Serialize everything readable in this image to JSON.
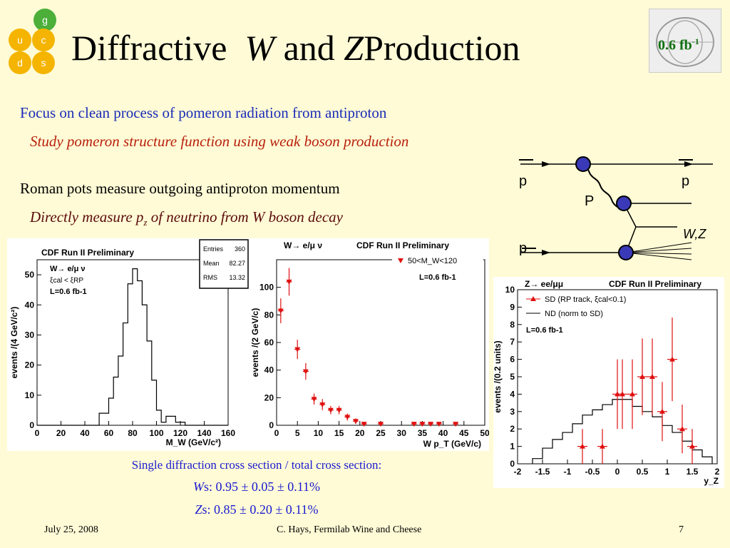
{
  "title": {
    "part1": "Diffractive",
    "w": "W",
    "and": "and",
    "z": "Z",
    "part2": "Production"
  },
  "logo_badge": "0.6 fb",
  "logo_badge_sup": "-1",
  "quark_logo": [
    "g",
    "u",
    "c",
    "d",
    "s"
  ],
  "text": {
    "line1": "Focus on clean process of pomeron radiation from antiproton",
    "line2": "Study pomeron structure function using weak boson production",
    "line3": "Roman pots measure outgoing antiproton momentum",
    "line4a": "Directly measure p",
    "line4sub": "z",
    "line4b": " of neutrino from W boson decay"
  },
  "diagram": {
    "p1": "p",
    "p2": "p",
    "pomeron": "P",
    "pbar": "p",
    "boson": "W,Z"
  },
  "xsec": {
    "heading": "Single diffraction cross section / total cross section:",
    "w_label": "W",
    "w_value": "s: 0.95 ± 0.05 ± 0.11%",
    "z_label": "Z",
    "z_value": "s: 0.85 ± 0.20 ± 0.11%"
  },
  "footer": {
    "date": "July 25, 2008",
    "author": "C. Hays, Fermilab Wine and Cheese",
    "page": "7"
  },
  "chart_data": [
    {
      "type": "bar",
      "title": "CDF Run II Preliminary",
      "process": "W→ e/μ ν",
      "cut": "ξcal < ξRP",
      "lumi": "L=0.6 fb-1",
      "xlabel": "M_W (GeV/c²)",
      "ylabel": "events /(4 GeV/c²)",
      "xlim": [
        0,
        160
      ],
      "ylim": [
        0,
        55
      ],
      "xticks": [
        0,
        20,
        40,
        60,
        80,
        100,
        120,
        140,
        160
      ],
      "yticks": [
        0,
        10,
        20,
        30,
        40,
        50
      ],
      "stats": {
        "Entries": "360",
        "Mean": "82.27",
        "RMS": "13.32"
      },
      "bin_edges": [
        0,
        4,
        8,
        12,
        16,
        20,
        24,
        28,
        32,
        36,
        40,
        44,
        48,
        52,
        56,
        60,
        64,
        68,
        72,
        76,
        80,
        84,
        88,
        92,
        96,
        100,
        104,
        108,
        112,
        116,
        120,
        124,
        128,
        132,
        136,
        140,
        144,
        148,
        152,
        156,
        160
      ],
      "values": [
        0,
        0,
        0,
        0,
        0,
        0,
        0,
        0,
        0,
        0,
        0,
        0,
        0,
        4,
        4,
        9,
        16,
        23,
        34,
        47,
        52,
        48,
        40,
        28,
        15,
        5,
        1,
        3,
        3,
        1,
        1,
        0,
        0,
        0,
        0,
        0,
        0,
        0,
        0,
        0
      ]
    },
    {
      "type": "scatter",
      "title": "CDF Run II Preliminary",
      "process": "W→ e/μ ν",
      "legend": "50<M_W<120",
      "lumi": "L=0.6 fb-1",
      "xlabel": "W p_T (GeV/c)",
      "ylabel": "events /(2 GeV/c)",
      "xlim": [
        0,
        50
      ],
      "ylim": [
        0,
        120
      ],
      "xticks": [
        0,
        5,
        10,
        15,
        20,
        25,
        30,
        35,
        40,
        45,
        50
      ],
      "yticks": [
        0,
        20,
        40,
        60,
        80,
        100
      ],
      "x": [
        1,
        3,
        5,
        7,
        9,
        11,
        13,
        15,
        17,
        19,
        21,
        25,
        33,
        35,
        37,
        39,
        43
      ],
      "y": [
        83,
        104,
        55,
        39,
        19,
        15,
        11,
        11,
        6,
        3,
        1,
        1,
        1,
        1,
        1,
        1,
        1
      ],
      "yerr": [
        9,
        10,
        7,
        6,
        4,
        4,
        3,
        3,
        2.5,
        2,
        1,
        1,
        1,
        1,
        1,
        1,
        1
      ]
    },
    {
      "type": "scatter",
      "title": "CDF Run II Preliminary",
      "process": "Z→ ee/μμ",
      "lumi": "L=0.6 fb-1",
      "xlabel": "y_Z",
      "ylabel": "events /(0.2 units)",
      "xlim": [
        -2,
        2
      ],
      "ylim": [
        0,
        10
      ],
      "xticks": [
        -2,
        -1.5,
        -1,
        -0.5,
        0,
        0.5,
        1,
        1.5,
        2
      ],
      "yticks": [
        0,
        1,
        2,
        3,
        4,
        5,
        6,
        7,
        8,
        9,
        10
      ],
      "series": [
        {
          "name": "SD (RP track, ξcal<0.1)",
          "x": [
            -0.7,
            -0.3,
            0,
            0.1,
            0.3,
            0.5,
            0.7,
            0.9,
            1.1,
            1.3,
            1.5
          ],
          "y": [
            1,
            1,
            4,
            4,
            4,
            5,
            5,
            3,
            6,
            2,
            1
          ],
          "yerr": [
            1,
            1,
            2,
            2,
            2,
            2.2,
            2.2,
            1.7,
            2.4,
            1.4,
            1
          ]
        },
        {
          "name": "ND (norm to SD)",
          "bin_edges": [
            -1.7,
            -1.5,
            -1.3,
            -1.1,
            -0.9,
            -0.7,
            -0.5,
            -0.3,
            -0.1,
            0.1,
            0.3,
            0.5,
            0.7,
            0.9,
            1.1,
            1.3,
            1.5,
            1.7,
            1.9
          ],
          "values": [
            0.3,
            0.9,
            1.4,
            1.8,
            2.3,
            2.8,
            3.1,
            3.4,
            3.7,
            3.7,
            3.3,
            3.0,
            2.7,
            2.2,
            1.8,
            1.3,
            0.8,
            0.4
          ]
        }
      ]
    }
  ]
}
